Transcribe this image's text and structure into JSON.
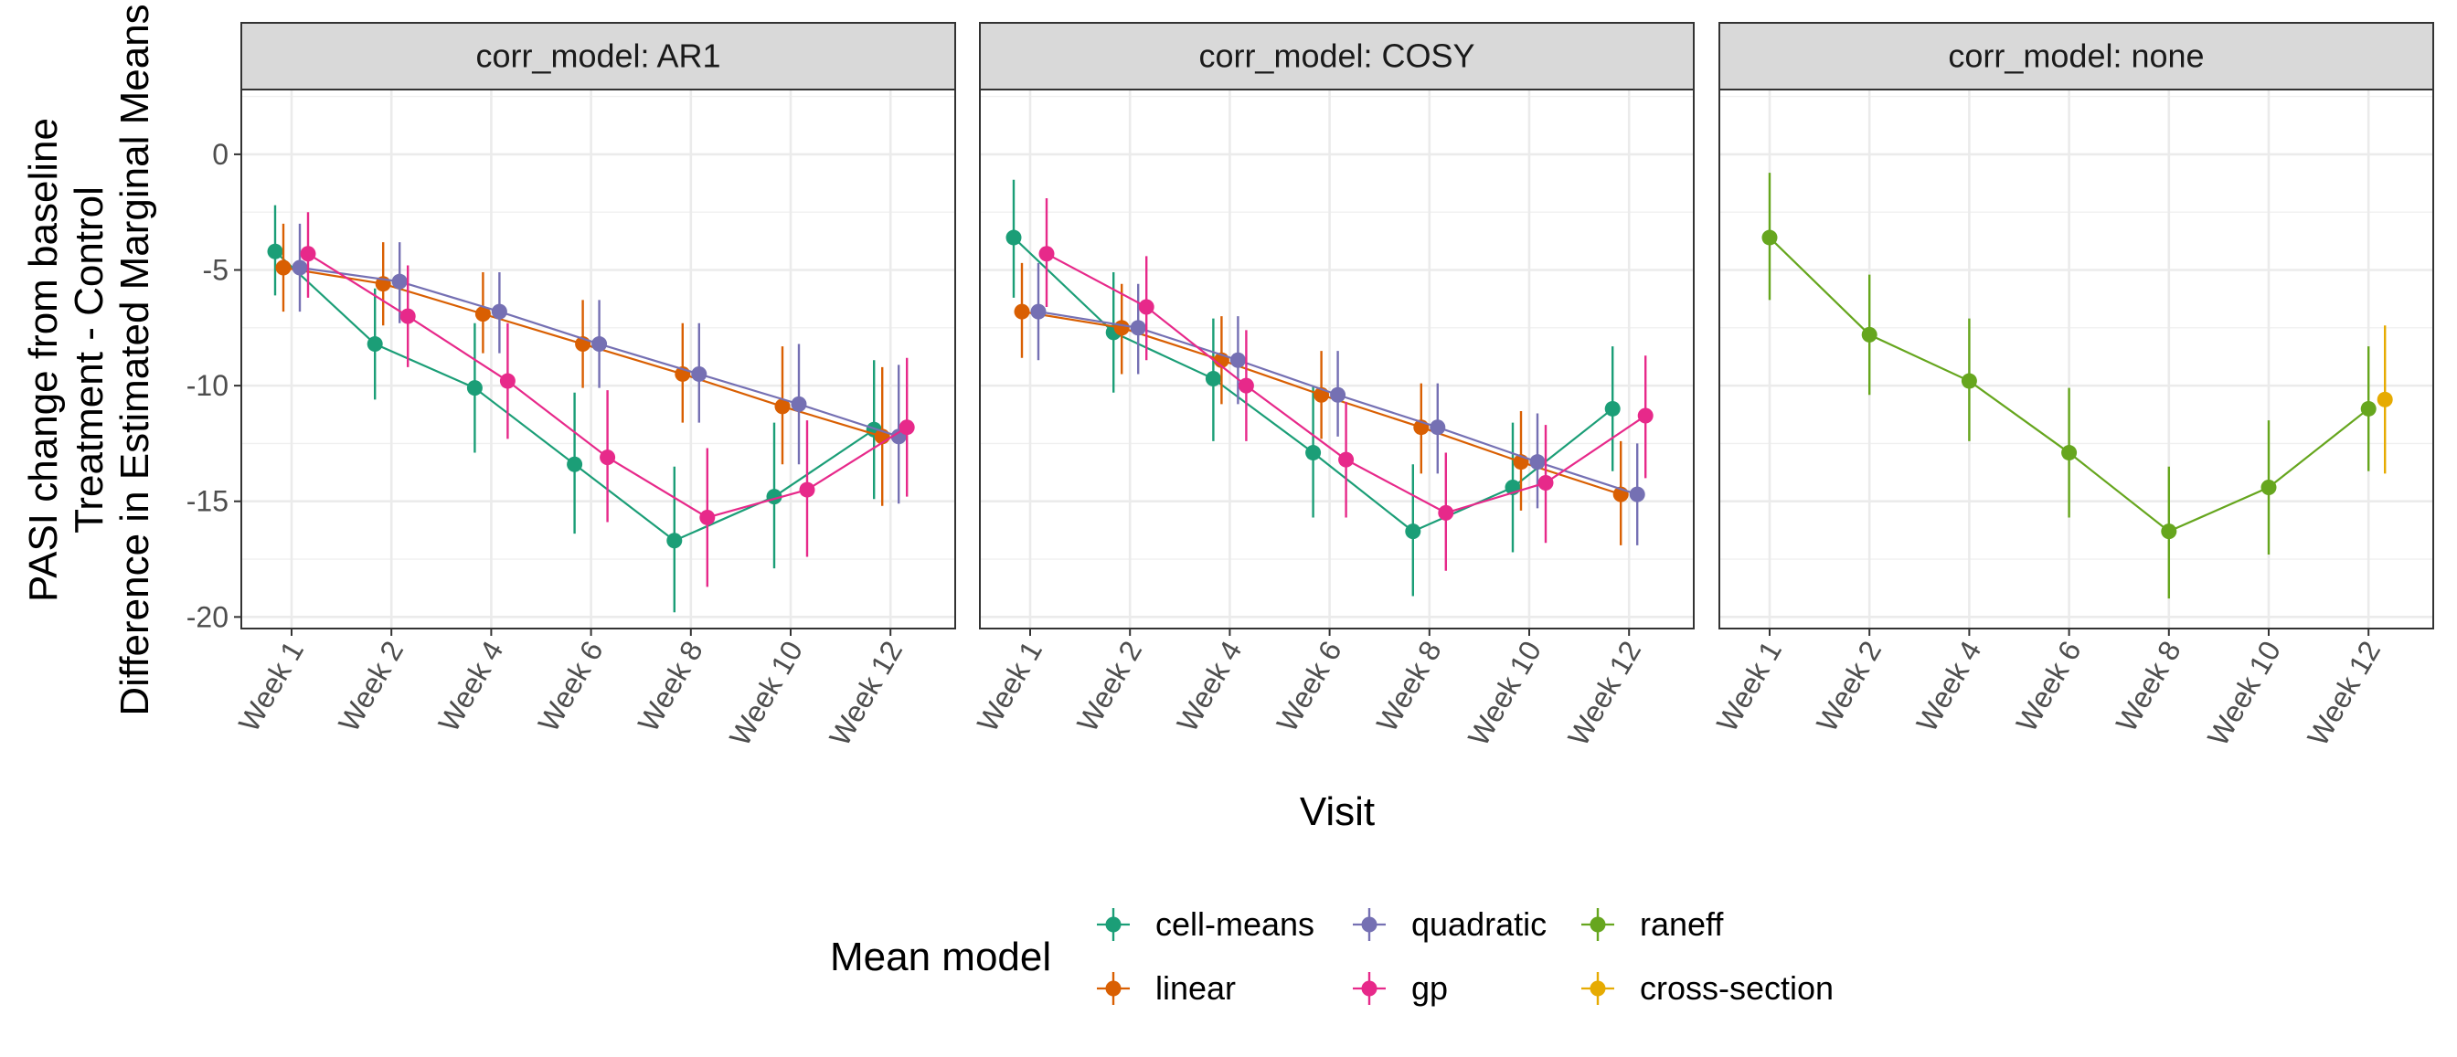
{
  "chart_data": {
    "type": "line",
    "facet_variable": "corr_model",
    "panels": [
      {
        "strip_label": "corr_model: AR1",
        "series": [
          {
            "name": "cell-means",
            "color": "#1B9E77",
            "points": [
              {
                "x": "Week 1",
                "y": -4.2,
                "lower": -6.1,
                "upper": -2.2
              },
              {
                "x": "Week 2",
                "y": -8.2,
                "lower": -10.6,
                "upper": -5.8
              },
              {
                "x": "Week 4",
                "y": -10.1,
                "lower": -12.9,
                "upper": -7.3
              },
              {
                "x": "Week 6",
                "y": -13.4,
                "lower": -16.4,
                "upper": -10.3
              },
              {
                "x": "Week 8",
                "y": -16.7,
                "lower": -19.8,
                "upper": -13.5
              },
              {
                "x": "Week 10",
                "y": -14.8,
                "lower": -17.9,
                "upper": -11.6
              },
              {
                "x": "Week 12",
                "y": -11.9,
                "lower": -14.9,
                "upper": -8.9
              }
            ]
          },
          {
            "name": "linear",
            "color": "#D95F02",
            "points": [
              {
                "x": "Week 1",
                "y": -4.9,
                "lower": -6.8,
                "upper": -3.0
              },
              {
                "x": "Week 2",
                "y": -5.6,
                "lower": -7.4,
                "upper": -3.8
              },
              {
                "x": "Week 4",
                "y": -6.9,
                "lower": -8.6,
                "upper": -5.1
              },
              {
                "x": "Week 6",
                "y": -8.2,
                "lower": -10.1,
                "upper": -6.3
              },
              {
                "x": "Week 8",
                "y": -9.5,
                "lower": -11.6,
                "upper": -7.3
              },
              {
                "x": "Week 10",
                "y": -10.9,
                "lower": -13.4,
                "upper": -8.3
              },
              {
                "x": "Week 12",
                "y": -12.2,
                "lower": -15.2,
                "upper": -9.2
              }
            ]
          },
          {
            "name": "quadratic",
            "color": "#7570B3",
            "points": [
              {
                "x": "Week 1",
                "y": -4.9,
                "lower": -6.8,
                "upper": -3.0
              },
              {
                "x": "Week 2",
                "y": -5.5,
                "lower": -7.3,
                "upper": -3.8
              },
              {
                "x": "Week 4",
                "y": -6.8,
                "lower": -8.6,
                "upper": -5.1
              },
              {
                "x": "Week 6",
                "y": -8.2,
                "lower": -10.1,
                "upper": -6.3
              },
              {
                "x": "Week 8",
                "y": -9.5,
                "lower": -11.6,
                "upper": -7.3
              },
              {
                "x": "Week 10",
                "y": -10.8,
                "lower": -13.4,
                "upper": -8.2
              },
              {
                "x": "Week 12",
                "y": -12.2,
                "lower": -15.1,
                "upper": -9.1
              }
            ]
          },
          {
            "name": "gp",
            "color": "#E7298A",
            "points": [
              {
                "x": "Week 1",
                "y": -4.3,
                "lower": -6.2,
                "upper": -2.5
              },
              {
                "x": "Week 2",
                "y": -7.0,
                "lower": -9.2,
                "upper": -4.8
              },
              {
                "x": "Week 4",
                "y": -9.8,
                "lower": -12.3,
                "upper": -7.3
              },
              {
                "x": "Week 6",
                "y": -13.1,
                "lower": -15.9,
                "upper": -10.2
              },
              {
                "x": "Week 8",
                "y": -15.7,
                "lower": -18.7,
                "upper": -12.7
              },
              {
                "x": "Week 10",
                "y": -14.5,
                "lower": -17.4,
                "upper": -11.5
              },
              {
                "x": "Week 12",
                "y": -11.8,
                "lower": -14.8,
                "upper": -8.8
              }
            ]
          }
        ]
      },
      {
        "strip_label": "corr_model: COSY",
        "series": [
          {
            "name": "cell-means",
            "color": "#1B9E77",
            "points": [
              {
                "x": "Week 1",
                "y": -3.6,
                "lower": -6.2,
                "upper": -1.1
              },
              {
                "x": "Week 2",
                "y": -7.7,
                "lower": -10.3,
                "upper": -5.1
              },
              {
                "x": "Week 4",
                "y": -9.7,
                "lower": -12.4,
                "upper": -7.1
              },
              {
                "x": "Week 6",
                "y": -12.9,
                "lower": -15.7,
                "upper": -10.0
              },
              {
                "x": "Week 8",
                "y": -16.3,
                "lower": -19.1,
                "upper": -13.4
              },
              {
                "x": "Week 10",
                "y": -14.4,
                "lower": -17.2,
                "upper": -11.6
              },
              {
                "x": "Week 12",
                "y": -11.0,
                "lower": -13.7,
                "upper": -8.3
              }
            ]
          },
          {
            "name": "linear",
            "color": "#D95F02",
            "points": [
              {
                "x": "Week 1",
                "y": -6.8,
                "lower": -8.8,
                "upper": -4.7
              },
              {
                "x": "Week 2",
                "y": -7.5,
                "lower": -9.5,
                "upper": -5.6
              },
              {
                "x": "Week 4",
                "y": -8.9,
                "lower": -10.8,
                "upper": -7.0
              },
              {
                "x": "Week 6",
                "y": -10.4,
                "lower": -12.3,
                "upper": -8.5
              },
              {
                "x": "Week 8",
                "y": -11.8,
                "lower": -13.8,
                "upper": -9.9
              },
              {
                "x": "Week 10",
                "y": -13.3,
                "lower": -15.4,
                "upper": -11.1
              },
              {
                "x": "Week 12",
                "y": -14.7,
                "lower": -16.9,
                "upper": -12.4
              }
            ]
          },
          {
            "name": "quadratic",
            "color": "#7570B3",
            "points": [
              {
                "x": "Week 1",
                "y": -6.8,
                "lower": -8.9,
                "upper": -4.7
              },
              {
                "x": "Week 2",
                "y": -7.5,
                "lower": -9.5,
                "upper": -5.6
              },
              {
                "x": "Week 4",
                "y": -8.9,
                "lower": -10.8,
                "upper": -7.0
              },
              {
                "x": "Week 6",
                "y": -10.4,
                "lower": -12.2,
                "upper": -8.5
              },
              {
                "x": "Week 8",
                "y": -11.8,
                "lower": -13.8,
                "upper": -9.9
              },
              {
                "x": "Week 10",
                "y": -13.3,
                "lower": -15.3,
                "upper": -11.2
              },
              {
                "x": "Week 12",
                "y": -14.7,
                "lower": -16.9,
                "upper": -12.5
              }
            ]
          },
          {
            "name": "gp",
            "color": "#E7298A",
            "points": [
              {
                "x": "Week 1",
                "y": -4.3,
                "lower": -6.6,
                "upper": -1.9
              },
              {
                "x": "Week 2",
                "y": -6.6,
                "lower": -8.9,
                "upper": -4.4
              },
              {
                "x": "Week 4",
                "y": -10.0,
                "lower": -12.4,
                "upper": -7.6
              },
              {
                "x": "Week 6",
                "y": -13.2,
                "lower": -15.7,
                "upper": -10.7
              },
              {
                "x": "Week 8",
                "y": -15.5,
                "lower": -18.0,
                "upper": -12.9
              },
              {
                "x": "Week 10",
                "y": -14.2,
                "lower": -16.8,
                "upper": -11.7
              },
              {
                "x": "Week 12",
                "y": -11.3,
                "lower": -14.0,
                "upper": -8.7
              }
            ]
          }
        ]
      },
      {
        "strip_label": "corr_model: none",
        "series": [
          {
            "name": "raneff",
            "color": "#66A61E",
            "points": [
              {
                "x": "Week 1",
                "y": -3.6,
                "lower": -6.3,
                "upper": -0.8
              },
              {
                "x": "Week 2",
                "y": -7.8,
                "lower": -10.4,
                "upper": -5.2
              },
              {
                "x": "Week 4",
                "y": -9.8,
                "lower": -12.4,
                "upper": -7.1
              },
              {
                "x": "Week 6",
                "y": -12.9,
                "lower": -15.7,
                "upper": -10.1
              },
              {
                "x": "Week 8",
                "y": -16.3,
                "lower": -19.2,
                "upper": -13.5
              },
              {
                "x": "Week 10",
                "y": -14.4,
                "lower": -17.3,
                "upper": -11.5
              },
              {
                "x": "Week 12",
                "y": -11.0,
                "lower": -13.7,
                "upper": -8.3
              }
            ]
          },
          {
            "name": "cross-section",
            "color": "#E6AB02",
            "points": [
              {
                "x": "Week 12",
                "y": -10.6,
                "lower": -13.8,
                "upper": -7.4
              }
            ]
          }
        ]
      }
    ],
    "categories": [
      "Week 1",
      "Week 2",
      "Week 4",
      "Week 6",
      "Week 8",
      "Week 10",
      "Week 12"
    ],
    "xlabel": "Visit",
    "ylabel_lines": [
      "PASI change from baseline",
      "Treatment - Control",
      "Difference in Estimated Marginal Means"
    ],
    "ylim": [
      -20.5,
      2.8
    ],
    "yticks": [
      0,
      -5,
      -10,
      -15,
      -20
    ],
    "grid": true,
    "legend": {
      "position": "bottom",
      "title": "Mean model",
      "entries": [
        {
          "name": "cell-means",
          "color": "#1B9E77"
        },
        {
          "name": "linear",
          "color": "#D95F02"
        },
        {
          "name": "quadratic",
          "color": "#7570B3"
        },
        {
          "name": "gp",
          "color": "#E7298A"
        },
        {
          "name": "raneff",
          "color": "#66A61E"
        },
        {
          "name": "cross-section",
          "color": "#E6AB02"
        }
      ]
    }
  }
}
